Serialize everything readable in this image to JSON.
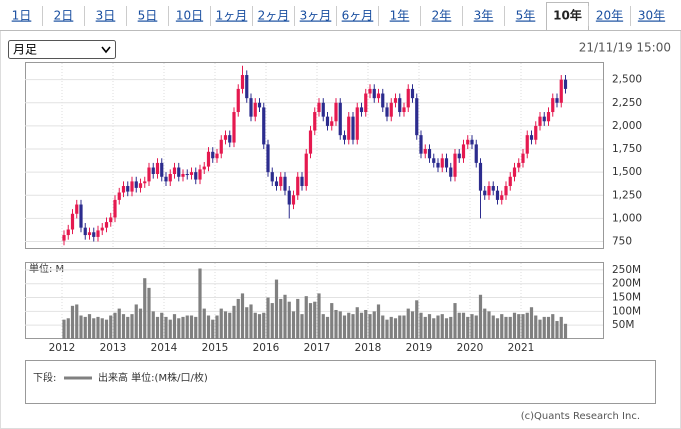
{
  "tabs": [
    "1日",
    "2日",
    "3日",
    "5日",
    "10日",
    "1ヶ月",
    "2ヶ月",
    "3ヶ月",
    "6ヶ月",
    "1年",
    "2年",
    "3年",
    "5年",
    "10年",
    "20年",
    "30年"
  ],
  "selected_tab": 13,
  "period_select": "月足",
  "timestamp": "21/11/19 15:00",
  "chart_data": [
    {
      "type": "candlestick",
      "categories": [
        "2012",
        null,
        null,
        null,
        null,
        null,
        null,
        null,
        null,
        null,
        null,
        null,
        "2013",
        null,
        null,
        null,
        null,
        null,
        null,
        null,
        null,
        null,
        null,
        null,
        "2014",
        null,
        null,
        null,
        null,
        null,
        null,
        null,
        null,
        null,
        null,
        null,
        "2015",
        null,
        null,
        null,
        null,
        null,
        null,
        null,
        null,
        null,
        null,
        null,
        "2016",
        null,
        null,
        null,
        null,
        null,
        null,
        null,
        null,
        null,
        null,
        null,
        "2017",
        null,
        null,
        null,
        null,
        null,
        null,
        null,
        null,
        null,
        null,
        null,
        "2018",
        null,
        null,
        null,
        null,
        null,
        null,
        null,
        null,
        null,
        null,
        null,
        "2019",
        null,
        null,
        null,
        null,
        null,
        null,
        null,
        null,
        null,
        null,
        null,
        "2020",
        null,
        null,
        null,
        null,
        null,
        null,
        null,
        null,
        null,
        null,
        null,
        "2021",
        null,
        null,
        null,
        null,
        null,
        null,
        null,
        null,
        null,
        null
      ],
      "open": [
        760,
        820,
        880,
        1050,
        1150,
        900,
        820,
        850,
        800,
        870,
        900,
        960,
        1010,
        1200,
        1280,
        1350,
        1290,
        1400,
        1330,
        1380,
        1400,
        1550,
        1480,
        1600,
        1450,
        1400,
        1480,
        1550,
        1450,
        1480,
        1470,
        1500,
        1420,
        1530,
        1560,
        1720,
        1650,
        1700,
        1850,
        1900,
        1820,
        2150,
        2400,
        2550,
        2300,
        2100,
        2250,
        2200,
        1800,
        1500,
        1400,
        1350,
        1450,
        1300,
        1150,
        1250,
        1450,
        1350,
        1700,
        1950,
        2150,
        2250,
        2100,
        2000,
        2050,
        2250,
        1900,
        1850,
        2100,
        1850,
        2200,
        2150,
        2350,
        2400,
        2300,
        2350,
        2200,
        2100,
        2250,
        2300,
        2150,
        2200,
        2400,
        2300,
        1900,
        1700,
        1750,
        1650,
        1600,
        1550,
        1650,
        1550,
        1450,
        1700,
        1650,
        1800,
        1850,
        1800,
        1600,
        1300,
        1250,
        1350,
        1300,
        1200,
        1250,
        1350,
        1450,
        1550,
        1600,
        1700,
        1900,
        1850,
        2000,
        2100,
        2050,
        2150,
        2300,
        2250,
        2500
      ],
      "high": [
        870,
        930,
        1100,
        1200,
        1200,
        950,
        900,
        900,
        920,
        950,
        1010,
        1060,
        1250,
        1330,
        1400,
        1400,
        1450,
        1450,
        1430,
        1450,
        1600,
        1600,
        1650,
        1650,
        1500,
        1530,
        1600,
        1600,
        1530,
        1530,
        1550,
        1550,
        1580,
        1610,
        1770,
        1770,
        1750,
        1900,
        1950,
        1950,
        2200,
        2450,
        2650,
        2600,
        2350,
        2300,
        2300,
        2250,
        1850,
        1550,
        1450,
        1500,
        1500,
        1350,
        1300,
        1500,
        1500,
        1750,
        2000,
        2200,
        2300,
        2300,
        2150,
        2100,
        2300,
        2300,
        1950,
        2150,
        2150,
        2250,
        2250,
        2400,
        2450,
        2450,
        2400,
        2400,
        2250,
        2300,
        2350,
        2350,
        2250,
        2450,
        2450,
        2350,
        1950,
        1800,
        1800,
        1700,
        1650,
        1700,
        1700,
        1600,
        1750,
        1750,
        1850,
        1900,
        1900,
        1850,
        1650,
        1350,
        1400,
        1400,
        1350,
        1300,
        1400,
        1500,
        1600,
        1650,
        1750,
        1950,
        1950,
        2050,
        2150,
        2150,
        2200,
        2350,
        2350,
        2550,
        2550
      ],
      "low": [
        710,
        770,
        830,
        1000,
        850,
        770,
        770,
        750,
        750,
        820,
        850,
        910,
        960,
        1150,
        1230,
        1240,
        1240,
        1280,
        1280,
        1330,
        1350,
        1430,
        1430,
        1400,
        1350,
        1350,
        1430,
        1400,
        1400,
        1420,
        1420,
        1370,
        1370,
        1480,
        1510,
        1600,
        1600,
        1650,
        1800,
        1770,
        1770,
        2100,
        2350,
        2250,
        2050,
        2050,
        2150,
        1750,
        1450,
        1350,
        1300,
        1300,
        1250,
        1000,
        1100,
        1200,
        1300,
        1300,
        1650,
        1900,
        2100,
        2050,
        1950,
        1950,
        2000,
        1850,
        1800,
        1800,
        1800,
        1800,
        2100,
        2100,
        2300,
        2250,
        2250,
        2150,
        2050,
        2050,
        2200,
        2100,
        2100,
        2150,
        2250,
        1850,
        1650,
        1650,
        1600,
        1550,
        1500,
        1500,
        1500,
        1400,
        1400,
        1600,
        1600,
        1750,
        1750,
        1550,
        1000,
        1200,
        1200,
        1250,
        1150,
        1150,
        1200,
        1300,
        1400,
        1500,
        1550,
        1650,
        1800,
        1800,
        1950,
        2000,
        2000,
        2100,
        2200,
        2200,
        2350
      ],
      "close": [
        820,
        880,
        1050,
        1150,
        900,
        820,
        850,
        800,
        870,
        900,
        960,
        1010,
        1200,
        1280,
        1350,
        1290,
        1400,
        1330,
        1380,
        1400,
        1550,
        1480,
        1600,
        1450,
        1400,
        1480,
        1550,
        1450,
        1480,
        1470,
        1500,
        1420,
        1530,
        1560,
        1720,
        1650,
        1700,
        1850,
        1900,
        1820,
        2150,
        2400,
        2550,
        2300,
        2100,
        2250,
        2200,
        1800,
        1500,
        1400,
        1350,
        1450,
        1300,
        1150,
        1250,
        1450,
        1350,
        1700,
        1950,
        2150,
        2250,
        2100,
        2000,
        2050,
        2250,
        1900,
        1850,
        2100,
        1850,
        2200,
        2150,
        2350,
        2400,
        2300,
        2350,
        2200,
        2100,
        2250,
        2300,
        2150,
        2200,
        2400,
        2300,
        1900,
        1700,
        1750,
        1650,
        1600,
        1550,
        1650,
        1550,
        1450,
        1700,
        1650,
        1800,
        1850,
        1800,
        1600,
        1300,
        1250,
        1350,
        1300,
        1200,
        1250,
        1350,
        1450,
        1550,
        1600,
        1700,
        1900,
        1850,
        2000,
        2100,
        2050,
        2150,
        2300,
        2250,
        2500,
        2400
      ],
      "colors": {
        "up": "#e5194f",
        "down": "#2c2c8e"
      },
      "ylim": [
        680,
        2680
      ],
      "yticks": [
        750,
        {
          "value": 1000,
          "label": "1,000"
        },
        {
          "value": 1250,
          "label": "1,250"
        },
        {
          "value": 1500,
          "label": "1,500"
        },
        {
          "value": 1750,
          "label": "1,750"
        },
        {
          "value": 2000,
          "label": "2,000"
        },
        {
          "value": 2250,
          "label": "2,250"
        },
        {
          "value": 2500,
          "label": "2,500"
        }
      ],
      "grid": true
    },
    {
      "type": "bar",
      "y_label": "単位: M",
      "color": "#808080",
      "values": [
        70,
        75,
        120,
        125,
        85,
        80,
        90,
        75,
        80,
        75,
        70,
        85,
        95,
        110,
        90,
        80,
        90,
        125,
        110,
        220,
        185,
        100,
        80,
        95,
        80,
        70,
        90,
        75,
        80,
        85,
        85,
        80,
        255,
        110,
        85,
        70,
        85,
        110,
        100,
        95,
        120,
        145,
        165,
        115,
        125,
        95,
        90,
        95,
        150,
        130,
        215,
        145,
        160,
        135,
        100,
        145,
        90,
        155,
        130,
        135,
        165,
        90,
        80,
        130,
        105,
        100,
        85,
        95,
        90,
        115,
        95,
        105,
        90,
        100,
        125,
        85,
        70,
        80,
        75,
        85,
        85,
        110,
        100,
        140,
        95,
        80,
        90,
        75,
        85,
        90,
        75,
        80,
        130,
        95,
        95,
        80,
        90,
        85,
        160,
        110,
        100,
        85,
        75,
        90,
        80,
        80,
        95,
        90,
        90,
        95,
        115,
        85,
        70,
        80,
        80,
        90,
        65,
        80,
        55
      ],
      "ylim": [
        0,
        275
      ],
      "yticks": [
        {
          "value": 50,
          "label": "50M"
        },
        {
          "value": 100,
          "label": "100M"
        },
        {
          "value": 150,
          "label": "150M"
        },
        {
          "value": 200,
          "label": "200M"
        },
        {
          "value": 250,
          "label": "250M"
        }
      ],
      "grid": true
    }
  ],
  "legend": {
    "label": "下段:",
    "series": "出来高 単位:(M株/口/枚)"
  },
  "copyright": "(c)Quants Research Inc."
}
